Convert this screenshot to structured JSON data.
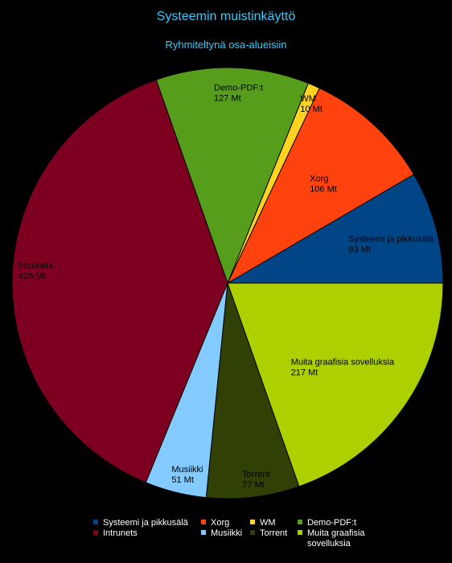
{
  "chart_data": {
    "type": "pie",
    "title": "Systeemin muistinkäyttö",
    "subtitle": "Ryhmiteltynä osa-alueisiin",
    "unit": "Mt",
    "slices": [
      {
        "name": "Systeemi ja pikkusälä",
        "value": 93,
        "label": "93 Mt",
        "color": "#004586"
      },
      {
        "name": "Xorg",
        "value": 106,
        "label": "106 Mt",
        "color": "#ff420e"
      },
      {
        "name": "WM",
        "value": 10,
        "label": "10 Mt",
        "color": "#ffd320"
      },
      {
        "name": "Demo-PDF:t",
        "value": 127,
        "label": "127 Mt",
        "color": "#579d1c"
      },
      {
        "name": "Intrunets",
        "value": 425,
        "label": "425 Mt",
        "color": "#7e0021"
      },
      {
        "name": "Musiikki",
        "value": 51,
        "label": "51 Mt",
        "color": "#83caff"
      },
      {
        "name": "Torrent",
        "value": 77,
        "label": "77 Mt",
        "color": "#314004"
      },
      {
        "name": "Muita graafisia sovelluksia",
        "value": 217,
        "label": "217 Mt",
        "color": "#aecf00"
      }
    ],
    "legend": {
      "placement": "bottom",
      "rows": [
        [
          "Systeemi ja pikkusälä",
          "Xorg",
          "WM",
          "Demo-PDF:t"
        ],
        [
          "Intrunets",
          "Musiikki",
          "Torrent",
          "Muita graafisia sovelluksia"
        ]
      ]
    }
  }
}
